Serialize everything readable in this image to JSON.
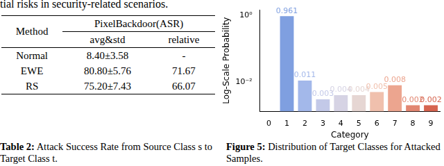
{
  "header_text": "tial risks in security-related scenarios.",
  "table": {
    "header": [
      "Method",
      "PixelBackdoor(ASR)"
    ],
    "subheader": [
      "avg&std",
      "relative"
    ],
    "rows": [
      [
        "Normal",
        "8.40±3.58",
        "-"
      ],
      [
        "EWE",
        "80.80±5.76",
        "71.67"
      ],
      [
        "RS",
        "75.20±7.43",
        "66.07"
      ]
    ]
  },
  "table_caption": {
    "label": "Table 2:",
    "text": "Attack Success Rate from Source Class s to Target Class t."
  },
  "chart_data": {
    "type": "bar",
    "x_label": "Category",
    "y_label": "Log-Scale Probability",
    "categories": [
      "0",
      "1",
      "2",
      "3",
      "4",
      "5",
      "6",
      "7",
      "8",
      "9"
    ],
    "values": [
      null,
      0.961,
      0.011,
      0.003,
      0.004,
      0.004,
      0.005,
      0.008,
      0.002,
      0.002
    ],
    "colors": [
      "#7f9fe0",
      "#7f9fe0",
      "#a3b8ea",
      "#c3c9e8",
      "#d6d3e4",
      "#e6d6d3",
      "#f0c0ad",
      "#eca58f",
      "#e28671",
      "#d6644f"
    ],
    "log": "y",
    "ylim": [
      0.0013,
      1.5
    ],
    "yticks": [
      {
        "value": 0.01,
        "label": "10⁻²"
      },
      {
        "value": 1,
        "label": "10⁰"
      }
    ],
    "grid": false,
    "data_labels": true
  },
  "figure_caption": {
    "label": "Figure 5:",
    "text": "Distribution of Target Classes for Attacked Samples."
  }
}
